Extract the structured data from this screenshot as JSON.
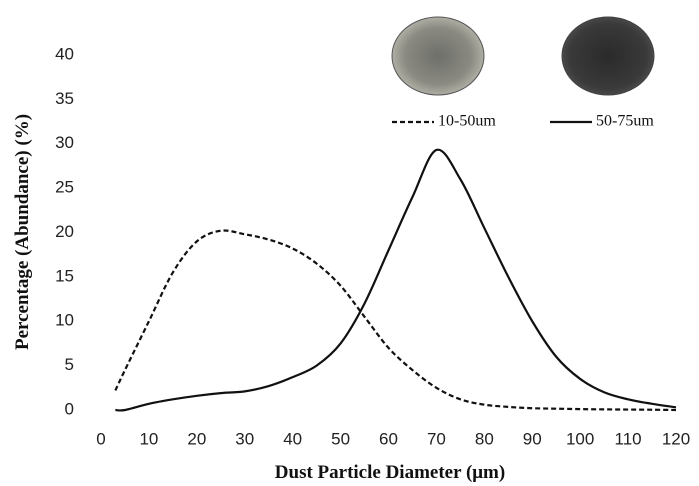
{
  "chart_data": {
    "type": "line",
    "x_label": "Dust Particle Diameter (μm)",
    "y_label": "Percentage (Abundance) (%)",
    "x": [
      3,
      5,
      10,
      15,
      20,
      25,
      30,
      35,
      40,
      45,
      50,
      55,
      60,
      65,
      70,
      75,
      80,
      85,
      90,
      95,
      100,
      105,
      110,
      115,
      120
    ],
    "series": [
      {
        "name": "10-50um",
        "color": "#111111",
        "dash": true,
        "values": [
          2.2,
          4.5,
          10,
          15.5,
          19,
          20.2,
          19.8,
          19.2,
          18.2,
          16.5,
          14,
          10.5,
          7,
          4.5,
          2.5,
          1.2,
          0.6,
          0.35,
          0.2,
          0.15,
          0.1,
          0.07,
          0.05,
          0.03,
          0
        ]
      },
      {
        "name": "50-75um",
        "color": "#111111",
        "dash": false,
        "values": [
          0,
          0,
          0.7,
          1.2,
          1.6,
          1.9,
          2.1,
          2.7,
          3.7,
          5,
          7.5,
          12,
          18,
          24,
          29.3,
          26,
          20.5,
          15,
          10,
          6,
          3.5,
          2,
          1.2,
          0.7,
          0.3
        ]
      }
    ],
    "xlim": [
      0,
      120
    ],
    "xticks": [
      0,
      10,
      20,
      30,
      40,
      50,
      60,
      70,
      80,
      90,
      100,
      110,
      120
    ],
    "ylim": [
      0,
      40
    ],
    "yticks": [
      0,
      5,
      10,
      15,
      20,
      25,
      30,
      35,
      40
    ]
  }
}
